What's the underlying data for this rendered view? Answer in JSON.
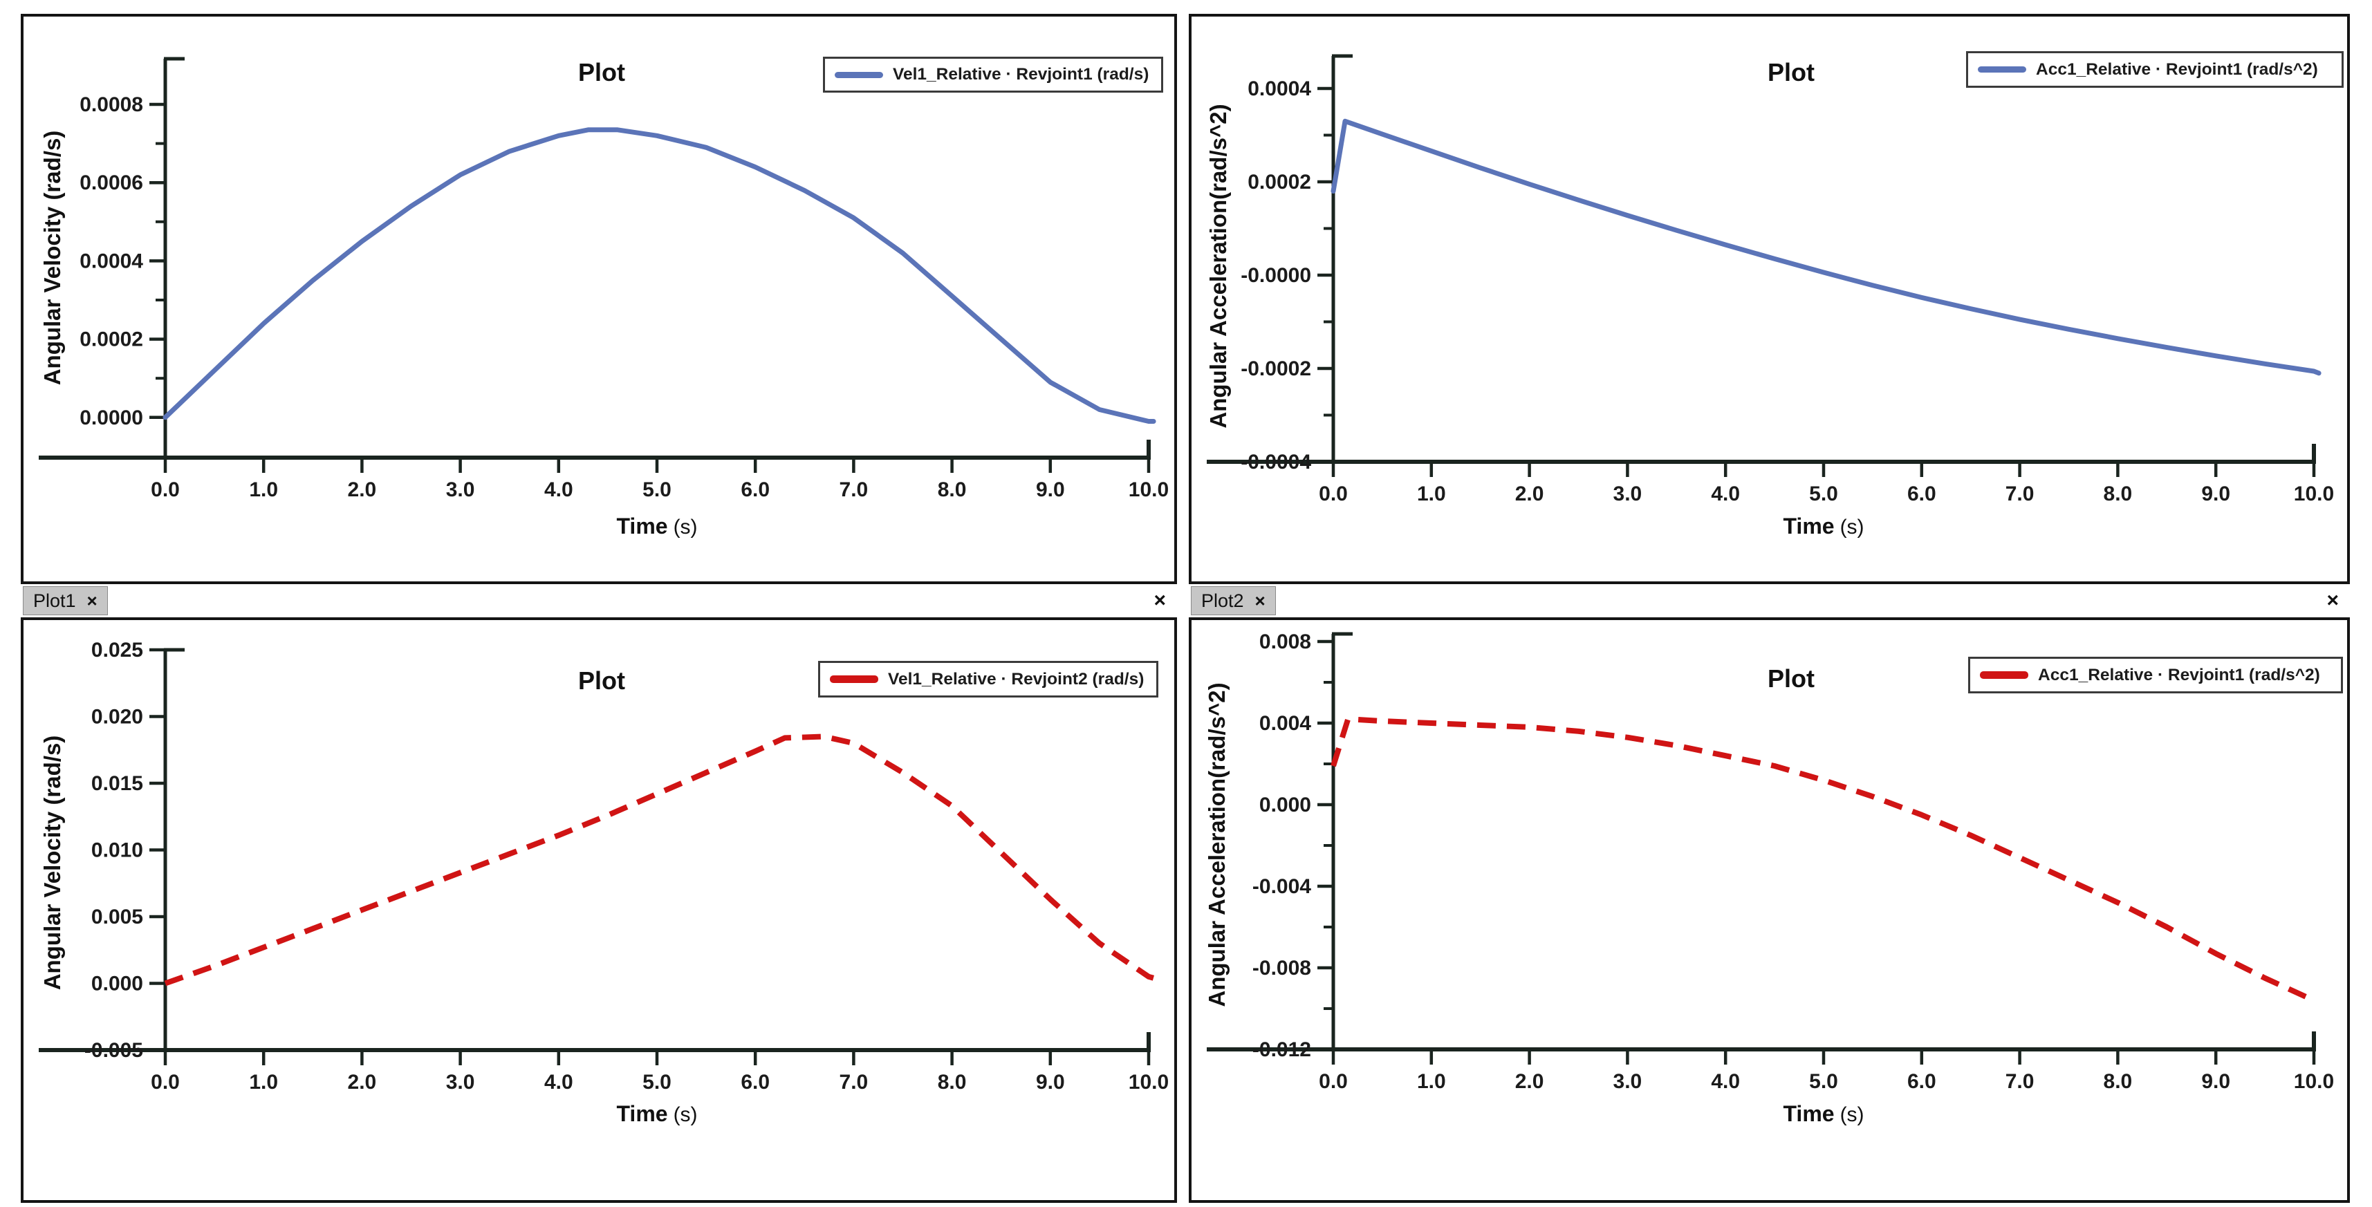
{
  "colors": {
    "blue_series": "#5B74B8",
    "red_series": "#D01414",
    "axis": "#1A241F",
    "tick_text": "#1B1B1B",
    "tab_bg": "#C6C6C6",
    "panel_border": "#141414",
    "legend_border": "#3B3B3B"
  },
  "tabs": [
    {
      "label": "Plot1",
      "close_icon": "×",
      "pane_close_icon": "×"
    },
    {
      "label": "Plot2",
      "close_icon": "×",
      "pane_close_icon": "×"
    }
  ],
  "chart_data": [
    {
      "type": "line",
      "panel": "top-left",
      "title": "Plot",
      "legend": {
        "label": "Vel1_Relative · Revjoint1  (rad/s)",
        "color": "#5B74B8",
        "line_style": "solid"
      },
      "xlabel_main": "Time",
      "xlabel_unit": "(s)",
      "ylabel": "Angular Velocity (rad/s)",
      "xlim": [
        0,
        10
      ],
      "ylim": [
        -0.0001,
        0.0009
      ],
      "grid": false,
      "legend_position": "top-right",
      "minor_ticks": true,
      "line_style": "solid",
      "x_ticks": {
        "values": [
          0,
          1,
          2,
          3,
          4,
          5,
          6,
          7,
          8,
          9,
          10
        ],
        "labels": [
          "0.0",
          "1.0",
          "2.0",
          "3.0",
          "4.0",
          "5.0",
          "6.0",
          "7.0",
          "8.0",
          "9.0",
          "10.0"
        ]
      },
      "y_ticks": {
        "values": [
          0.0008,
          0.0006,
          0.0004,
          0.0002,
          0.0
        ],
        "labels": [
          "0.0008",
          "0.0006",
          "0.0004",
          "0.0002",
          "0.0000"
        ]
      },
      "series": {
        "name": "Vel1_Relative · Revjoint1",
        "units": "rad/s",
        "x": [
          0,
          0.5,
          1,
          1.5,
          2,
          2.5,
          3,
          3.5,
          4,
          4.3,
          4.6,
          5,
          5.5,
          6,
          6.5,
          7,
          7.5,
          8,
          8.5,
          9,
          9.5,
          10,
          10.05
        ],
        "y": [
          0,
          0.00012,
          0.00024,
          0.00035,
          0.00045,
          0.00054,
          0.00062,
          0.00068,
          0.00072,
          0.000735,
          0.000735,
          0.00072,
          0.00069,
          0.00064,
          0.00058,
          0.00051,
          0.00042,
          0.00031,
          0.0002,
          9e-05,
          2e-05,
          -1e-05,
          -1e-05
        ]
      }
    },
    {
      "type": "line",
      "panel": "top-right",
      "title": "Plot",
      "legend": {
        "label": "Acc1_Relative · Revjoint1  (rad/s^2)",
        "color": "#5B74B8",
        "line_style": "solid"
      },
      "xlabel_main": "Time",
      "xlabel_unit": "(s)",
      "ylabel": "Angular Acceleration(rad/s^2)",
      "xlim": [
        0,
        10
      ],
      "ylim": [
        -0.0004,
        0.00045
      ],
      "grid": false,
      "legend_position": "top-right",
      "minor_ticks": true,
      "line_style": "solid",
      "x_ticks": {
        "values": [
          0,
          1,
          2,
          3,
          4,
          5,
          6,
          7,
          8,
          9,
          10
        ],
        "labels": [
          "0.0",
          "1.0",
          "2.0",
          "3.0",
          "4.0",
          "5.0",
          "6.0",
          "7.0",
          "8.0",
          "9.0",
          "10.0"
        ]
      },
      "y_ticks": {
        "values": [
          0.0004,
          0.0002,
          0.0,
          -0.0002,
          -0.0004
        ],
        "labels": [
          "0.0004",
          "0.0002",
          "-0.0000",
          "-0.0002",
          "-0.0004"
        ]
      },
      "series": {
        "name": "Acc1_Relative · Revjoint1",
        "units": "rad/s^2",
        "x": [
          0,
          0.12,
          0.5,
          1,
          1.5,
          2,
          2.5,
          3,
          3.5,
          4,
          4.5,
          5,
          5.5,
          6,
          6.5,
          7,
          7.5,
          8,
          8.5,
          9,
          9.5,
          10,
          10.05
        ],
        "y": [
          0.00018,
          0.00033,
          0.000302,
          0.000266,
          0.00023,
          0.000195,
          0.000161,
          0.000128,
          9.6e-05,
          6.5e-05,
          3.5e-05,
          6e-06,
          -2.2e-05,
          -4.8e-05,
          -7.2e-05,
          -9.5e-05,
          -0.000116,
          -0.000136,
          -0.000155,
          -0.000173,
          -0.00019,
          -0.000206,
          -0.00021
        ]
      }
    },
    {
      "type": "line",
      "panel": "bottom-left",
      "title": "Plot",
      "legend": {
        "label": "Vel1_Relative · Revjoint2  (rad/s)",
        "color": "#D01414",
        "line_style": "dashed"
      },
      "xlabel_main": "Time",
      "xlabel_unit": "(s)",
      "ylabel": "Angular Velocity (rad/s)",
      "xlim": [
        0,
        10
      ],
      "ylim": [
        -0.005,
        0.025
      ],
      "grid": false,
      "legend_position": "top-right",
      "minor_ticks": false,
      "line_style": "dashed",
      "x_ticks": {
        "values": [
          0,
          1,
          2,
          3,
          4,
          5,
          6,
          7,
          8,
          9,
          10
        ],
        "labels": [
          "0.0",
          "1.0",
          "2.0",
          "3.0",
          "4.0",
          "5.0",
          "6.0",
          "7.0",
          "8.0",
          "9.0",
          "10.0"
        ]
      },
      "y_ticks": {
        "values": [
          0.025,
          0.02,
          0.015,
          0.01,
          0.005,
          0.0,
          -0.005
        ],
        "labels": [
          "0.025",
          "0.020",
          "0.015",
          "0.010",
          "0.005",
          "0.000",
          "-0.005"
        ]
      },
      "series": {
        "name": "Vel1_Relative · Revjoint2",
        "units": "rad/s",
        "x": [
          0,
          0.5,
          1,
          1.5,
          2,
          2.5,
          3,
          3.5,
          4,
          4.5,
          5,
          5.5,
          6,
          6.3,
          6.7,
          7,
          7.5,
          8,
          8.5,
          9,
          9.5,
          10,
          10.05
        ],
        "y": [
          0,
          0.0013,
          0.0027,
          0.0041,
          0.0055,
          0.0069,
          0.0083,
          0.0097,
          0.0111,
          0.0126,
          0.0142,
          0.0158,
          0.0174,
          0.0184,
          0.0185,
          0.018,
          0.0158,
          0.0133,
          0.0098,
          0.0063,
          0.003,
          0.0005,
          0.0004
        ]
      }
    },
    {
      "type": "line",
      "panel": "bottom-right",
      "title": "Plot",
      "legend": {
        "label": "Acc1_Relative · Revjoint1  (rad/s^2)",
        "color": "#D01414",
        "line_style": "dashed"
      },
      "xlabel_main": "Time",
      "xlabel_unit": "(s)",
      "ylabel": "Angular Acceleration(rad/s^2)",
      "xlim": [
        0,
        10
      ],
      "ylim": [
        -0.012,
        0.009
      ],
      "grid": false,
      "legend_position": "top-right",
      "minor_ticks": true,
      "line_style": "dashed",
      "x_ticks": {
        "values": [
          0,
          1,
          2,
          3,
          4,
          5,
          6,
          7,
          8,
          9,
          10
        ],
        "labels": [
          "0.0",
          "1.0",
          "2.0",
          "3.0",
          "4.0",
          "5.0",
          "6.0",
          "7.0",
          "8.0",
          "9.0",
          "10.0"
        ]
      },
      "y_ticks": {
        "values": [
          0.008,
          0.004,
          0.0,
          -0.004,
          -0.008,
          -0.012
        ],
        "labels": [
          "0.008",
          "0.004",
          "0.000",
          "-0.004",
          "-0.008",
          "-0.012"
        ]
      },
      "series": {
        "name": "Acc1_Relative · Revjoint1",
        "units": "rad/s^2",
        "x": [
          0,
          0.15,
          0.5,
          1,
          1.5,
          2,
          2.5,
          3,
          3.5,
          4,
          4.5,
          5,
          5.5,
          6,
          6.5,
          7,
          7.5,
          8,
          8.5,
          9,
          9.5,
          10
        ],
        "y": [
          0.0019,
          0.0042,
          0.0041,
          0.004,
          0.0039,
          0.0038,
          0.0036,
          0.0033,
          0.0029,
          0.0024,
          0.0019,
          0.0012,
          0.0004,
          -0.0005,
          -0.0015,
          -0.0026,
          -0.0037,
          -0.0048,
          -0.006,
          -0.0073,
          -0.0085,
          -0.0096
        ]
      }
    }
  ]
}
